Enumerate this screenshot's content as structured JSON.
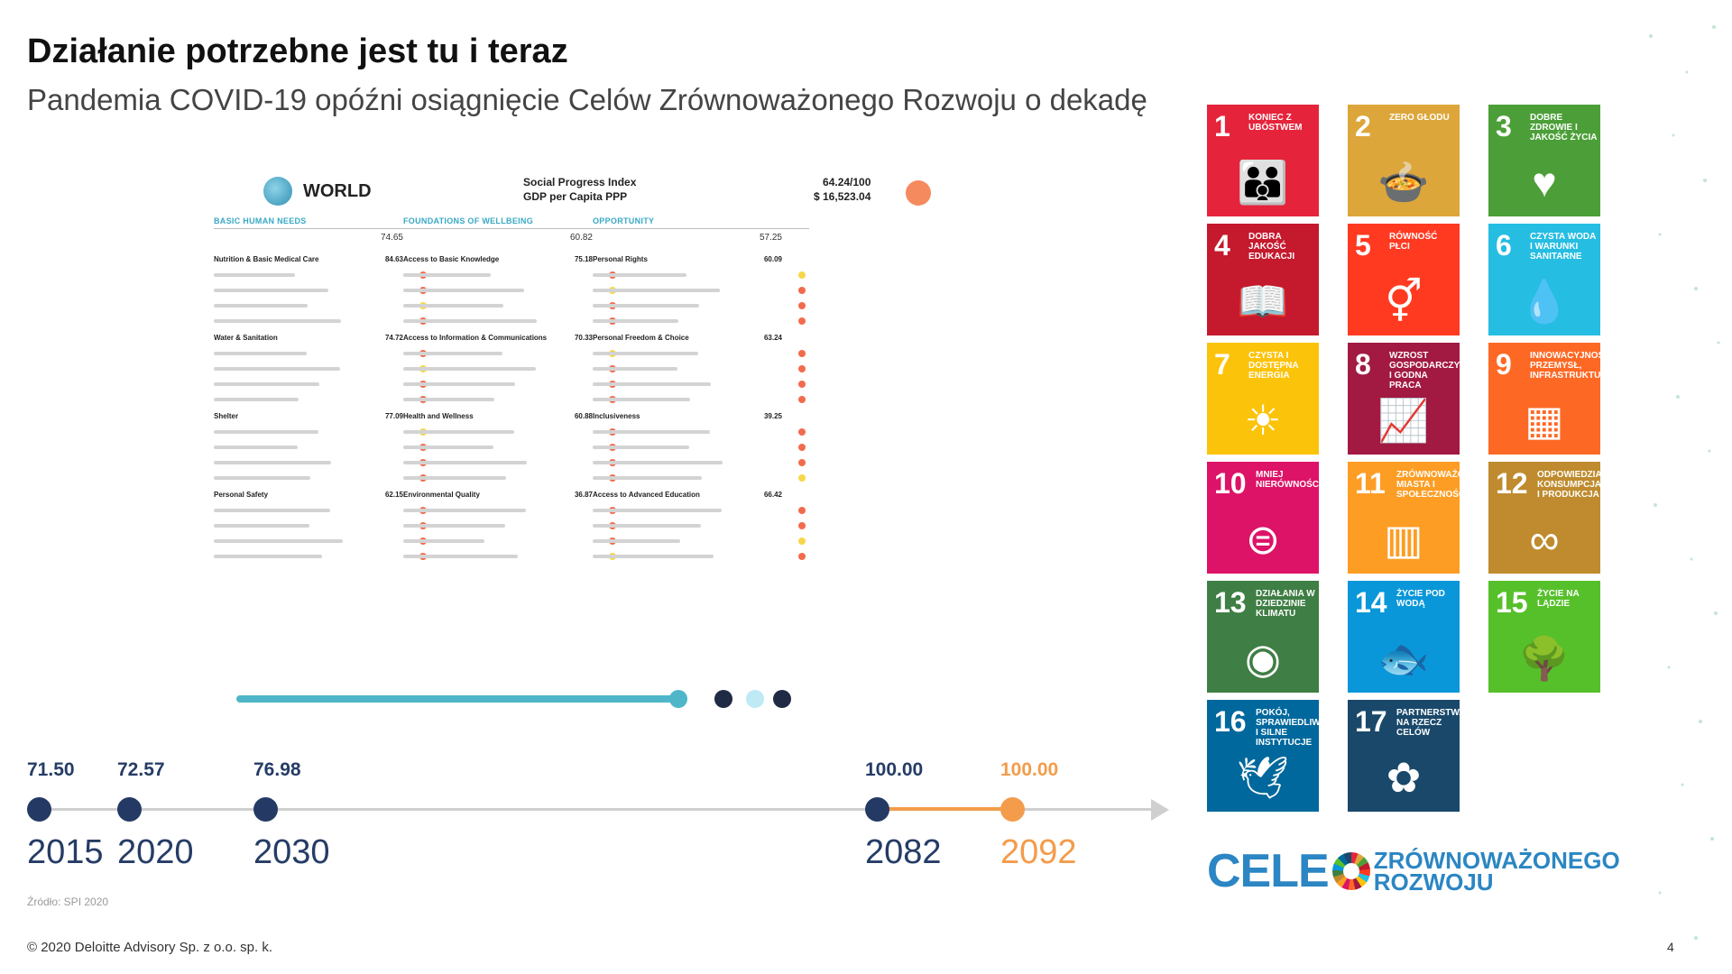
{
  "slide": {
    "title": "Działanie potrzebne jest tu i teraz",
    "subtitle": "Pandemia COVID-19 opóźni osiągnięcie Celów Zrównoważonego Rozwoju o dekadę",
    "source": "Źródło: SPI 2020",
    "footer": "© 2020 Deloitte Advisory Sp. z o.o. sp. k.",
    "page_number": "4"
  },
  "report": {
    "region": "WORLD",
    "index_title": "Social Progress Index",
    "gdp_title": "GDP per Capita PPP",
    "score": "64.24/100",
    "gdp": "$ 16,523.04",
    "columns": [
      {
        "header": "BASIC HUMAN NEEDS",
        "score": "74.65",
        "sections": [
          {
            "name": "Nutrition & Basic Medical Care",
            "score": "84.63"
          },
          {
            "name": "Water & Sanitation",
            "score": "74.72"
          },
          {
            "name": "Shelter",
            "score": "77.09"
          },
          {
            "name": "Personal Safety",
            "score": "62.15"
          }
        ]
      },
      {
        "header": "FOUNDATIONS OF WELLBEING",
        "score": "60.82",
        "sections": [
          {
            "name": "Access to Basic Knowledge",
            "score": "75.18"
          },
          {
            "name": "Access to Information & Communications",
            "score": "70.33"
          },
          {
            "name": "Health and Wellness",
            "score": "60.88"
          },
          {
            "name": "Environmental Quality",
            "score": "36.87"
          }
        ]
      },
      {
        "header": "OPPORTUNITY",
        "score": "57.25",
        "sections": [
          {
            "name": "Personal Rights",
            "score": "60.09"
          },
          {
            "name": "Personal Freedom & Choice",
            "score": "63.24"
          },
          {
            "name": "Inclusiveness",
            "score": "39.25"
          },
          {
            "name": "Access to Advanced Education",
            "score": "66.42"
          }
        ]
      }
    ]
  },
  "timeline": {
    "points": [
      {
        "value": "71.50",
        "year": "2015",
        "highlight": false
      },
      {
        "value": "72.57",
        "year": "2020",
        "highlight": false
      },
      {
        "value": "76.98",
        "year": "2030",
        "highlight": false
      },
      {
        "value": "100.00",
        "year": "2082",
        "highlight": false
      },
      {
        "value": "100.00",
        "year": "2092",
        "highlight": true
      }
    ],
    "colors": {
      "navy": "#243a64",
      "orange": "#f39c4b"
    }
  },
  "sdg": {
    "goals": [
      {
        "num": "1",
        "label": "Koniec z ubóstwem",
        "color": "#e5243b",
        "icon": "family-icon"
      },
      {
        "num": "2",
        "label": "Zero głodu",
        "color": "#dda63a",
        "icon": "bowl-icon"
      },
      {
        "num": "3",
        "label": "Dobre zdrowie i jakość życia",
        "color": "#4c9f38",
        "icon": "heartbeat-icon"
      },
      {
        "num": "4",
        "label": "Dobra jakość edukacji",
        "color": "#c5192d",
        "icon": "book-icon"
      },
      {
        "num": "5",
        "label": "Równość płci",
        "color": "#ff3a21",
        "icon": "gender-equality-icon"
      },
      {
        "num": "6",
        "label": "Czysta woda i warunki sanitarne",
        "color": "#26bde2",
        "icon": "water-drop-icon"
      },
      {
        "num": "7",
        "label": "Czysta i dostępna energia",
        "color": "#fcc30b",
        "icon": "sun-icon"
      },
      {
        "num": "8",
        "label": "Wzrost gospodarczy i godna praca",
        "color": "#a21942",
        "icon": "growth-chart-icon"
      },
      {
        "num": "9",
        "label": "Innowacyjność, przemysł, infrastruktura",
        "color": "#fd6925",
        "icon": "cubes-icon"
      },
      {
        "num": "10",
        "label": "Mniej nierówności",
        "color": "#dd1367",
        "icon": "equals-icon"
      },
      {
        "num": "11",
        "label": "Zrównoważone miasta i społeczności",
        "color": "#fd9d24",
        "icon": "city-icon"
      },
      {
        "num": "12",
        "label": "Odpowiedzialna konsumpcja i produkcja",
        "color": "#bf8b2e",
        "icon": "infinity-icon"
      },
      {
        "num": "13",
        "label": "Działania w dziedzinie klimatu",
        "color": "#3f7e44",
        "icon": "eye-globe-icon"
      },
      {
        "num": "14",
        "label": "Życie pod wodą",
        "color": "#0a97d9",
        "icon": "fish-icon"
      },
      {
        "num": "15",
        "label": "Życie na lądzie",
        "color": "#56c02b",
        "icon": "tree-icon"
      },
      {
        "num": "16",
        "label": "Pokój, sprawiedliwość i silne instytucje",
        "color": "#00689d",
        "icon": "dove-icon"
      },
      {
        "num": "17",
        "label": "Partnerstwa na rzecz celów",
        "color": "#19486a",
        "icon": "flower-icon"
      }
    ],
    "brand_celc": "CELE",
    "brand_line1": "ZRÓWNOWAŻONEGO",
    "brand_line2": "ROZWOJU"
  }
}
